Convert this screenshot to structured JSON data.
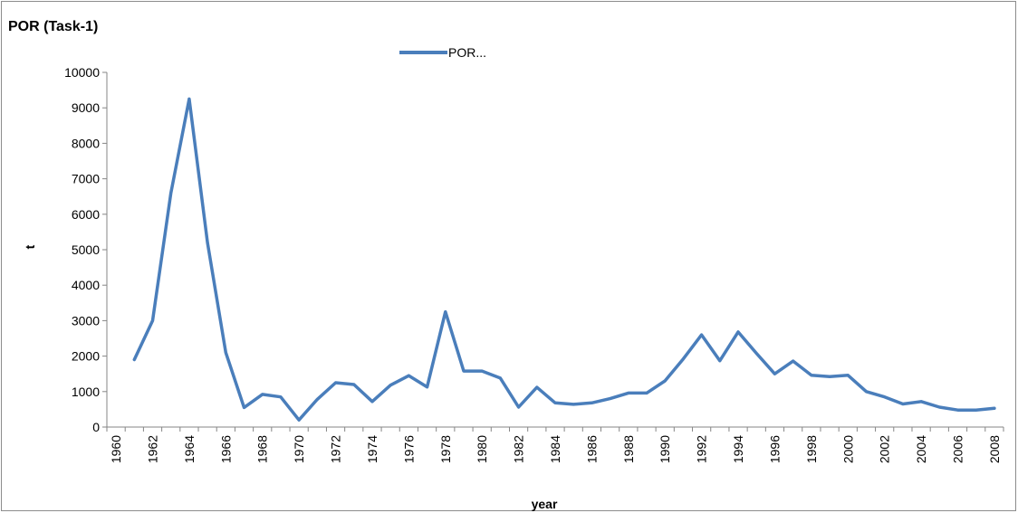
{
  "chart_data": {
    "type": "line",
    "title": "POR (Task-1)",
    "xlabel": "year",
    "ylabel": "t",
    "x": [
      1961,
      1962,
      1963,
      1964,
      1965,
      1966,
      1967,
      1968,
      1969,
      1970,
      1971,
      1972,
      1973,
      1974,
      1975,
      1976,
      1977,
      1978,
      1979,
      1980,
      1981,
      1982,
      1983,
      1984,
      1985,
      1986,
      1987,
      1988,
      1989,
      1990,
      1991,
      1992,
      1993,
      1994,
      1995,
      1996,
      1997,
      1998,
      1999,
      2000,
      2001,
      2002,
      2003,
      2004,
      2005,
      2006,
      2007,
      2008
    ],
    "series": [
      {
        "name": "POR...",
        "color": "#4a7ebb",
        "values": [
          1900,
          3000,
          6600,
          9250,
          5200,
          2100,
          550,
          920,
          850,
          200,
          780,
          1250,
          1200,
          720,
          1180,
          1450,
          1130,
          3250,
          1580,
          1580,
          1380,
          560,
          1120,
          680,
          640,
          680,
          800,
          960,
          960,
          1300,
          1920,
          2600,
          1870,
          2680,
          2080,
          1500,
          1860,
          1460,
          1420,
          1460,
          1000,
          850,
          650,
          720,
          560,
          480,
          480,
          530
        ]
      }
    ],
    "xlim": [
      1960,
      2008
    ],
    "ylim": [
      0,
      10000
    ],
    "x_ticks": [
      1960,
      1962,
      1964,
      1966,
      1968,
      1970,
      1972,
      1974,
      1976,
      1978,
      1980,
      1982,
      1984,
      1986,
      1988,
      1990,
      1992,
      1994,
      1996,
      1998,
      2000,
      2002,
      2004,
      2006,
      2008
    ],
    "y_ticks": [
      0,
      1000,
      2000,
      3000,
      4000,
      5000,
      6000,
      7000,
      8000,
      9000,
      10000
    ],
    "grid": false,
    "legend": "top-center"
  }
}
